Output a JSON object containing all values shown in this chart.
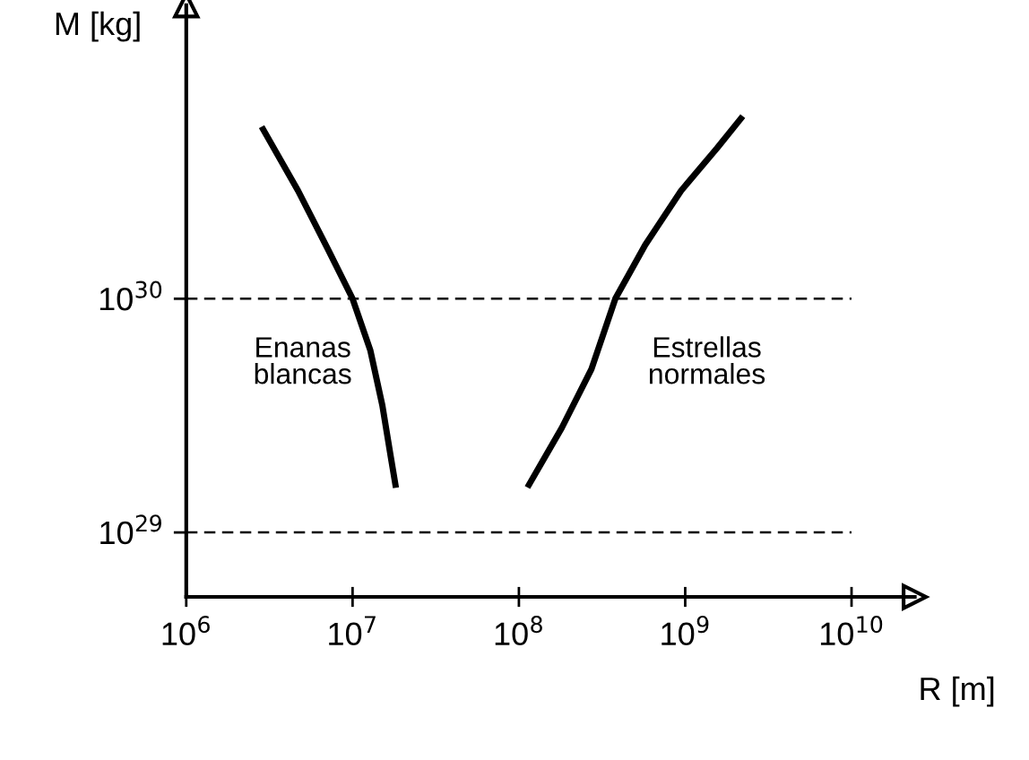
{
  "chart_data": {
    "type": "line",
    "xlabel": "R [m]",
    "ylabel": "M [kg]",
    "log": "xy",
    "xlim": [
      1000000.0,
      24000000000.0
    ],
    "ylim": [
      5.3e+28,
      1.8e+31
    ],
    "xticks": [
      {
        "value": 1000000.0,
        "label": "10$^{6}$"
      },
      {
        "value": 10000000.0,
        "label": "10$^{7}$"
      },
      {
        "value": 100000000.0,
        "label": "10$^{8}$"
      },
      {
        "value": 1000000000.0,
        "label": "10$^{9}$"
      },
      {
        "value": 10000000000.0,
        "label": "10$^{10}$"
      }
    ],
    "yticks": [
      {
        "value": 1e+29,
        "label": "10$^{29}$"
      },
      {
        "value": 1e+30,
        "label": "10$^{30}$"
      }
    ],
    "grid": false,
    "legend": false,
    "marker": "none",
    "line_style": "solid",
    "ref_lines": [
      {
        "axis": "y",
        "value": 1e+29,
        "color": "#000000",
        "line_style": "dashed"
      },
      {
        "axis": "y",
        "value": 1e+30,
        "color": "#000000",
        "line_style": "dashed"
      }
    ],
    "series": [
      {
        "name": "Enanas\nblancas",
        "color": "#000000",
        "x": [
          2900000.0,
          4700000.0,
          7200000.0,
          10000000.0,
          12800000.0,
          15100000.0,
          16800000.0,
          18100000.0
        ],
        "values": [
          5.3e+30,
          2.9e+30,
          1.6e+30,
          1e+30,
          6e+29,
          3.5e+29,
          2.2e+29,
          1.6e+29
        ]
      },
      {
        "name": "Estrellas\nnormales",
        "color": "#000000",
        "x": [
          115000000.0,
          181000000.0,
          273000000.0,
          380000000.0,
          575000000.0,
          945000000.0,
          1550000000.0,
          2160000000.0
        ],
        "values": [
          1.6e+29,
          2.8e+29,
          5e+29,
          1e+30,
          1.7e+30,
          2.9e+30,
          4.4e+30,
          5.9e+30
        ]
      }
    ]
  }
}
